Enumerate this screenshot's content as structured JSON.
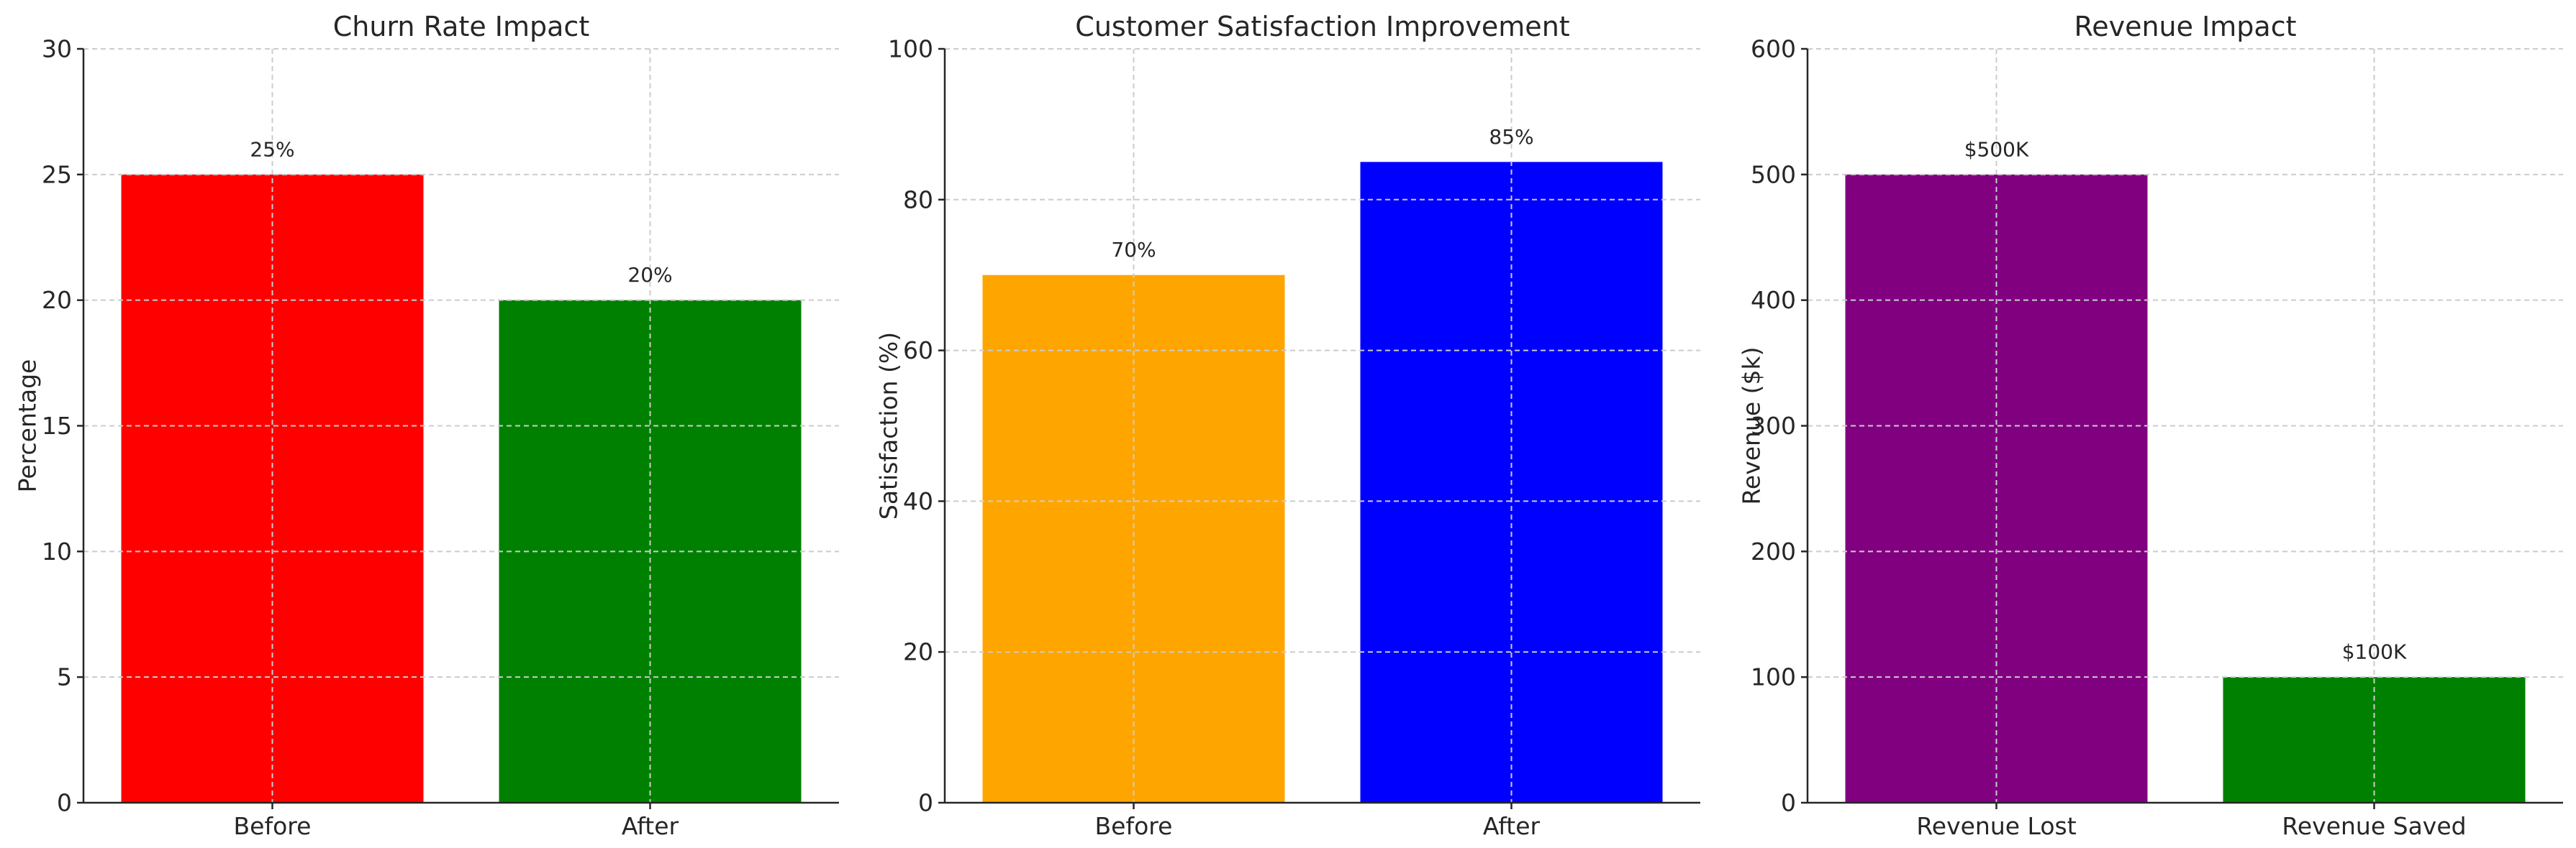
{
  "chart_data": [
    {
      "type": "bar",
      "title": "Churn Rate Impact",
      "xlabel": "",
      "ylabel": "Percentage",
      "categories": [
        "Before",
        "After"
      ],
      "values": [
        25,
        20
      ],
      "data_labels": [
        "25%",
        "20%"
      ],
      "colors": [
        "#ff0000",
        "#008000"
      ],
      "ylim": [
        0,
        30
      ],
      "yticks": [
        0,
        5,
        10,
        15,
        20,
        25,
        30
      ],
      "grid": true
    },
    {
      "type": "bar",
      "title": "Customer Satisfaction Improvement",
      "xlabel": "",
      "ylabel": "Satisfaction (%)",
      "categories": [
        "Before",
        "After"
      ],
      "values": [
        70,
        85
      ],
      "data_labels": [
        "70%",
        "85%"
      ],
      "colors": [
        "#ffa500",
        "#0000ff"
      ],
      "ylim": [
        0,
        100
      ],
      "yticks": [
        0,
        20,
        40,
        60,
        80,
        100
      ],
      "grid": true
    },
    {
      "type": "bar",
      "title": "Revenue Impact",
      "xlabel": "",
      "ylabel": "Revenue ($k)",
      "categories": [
        "Revenue Lost",
        "Revenue Saved"
      ],
      "values": [
        500,
        100
      ],
      "data_labels": [
        "$500K",
        "$100K"
      ],
      "colors": [
        "#800080",
        "#008000"
      ],
      "ylim": [
        0,
        600
      ],
      "yticks": [
        0,
        100,
        200,
        300,
        400,
        500,
        600
      ],
      "grid": true
    }
  ]
}
